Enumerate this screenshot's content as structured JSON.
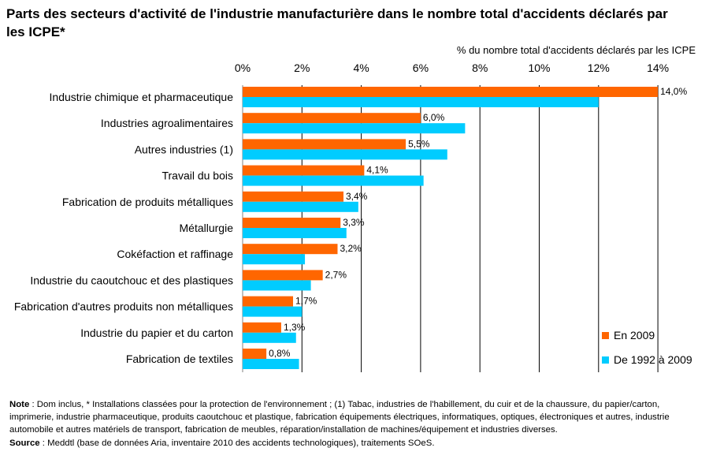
{
  "title": "Parts des secteurs d'activité de l'industrie manufacturière dans le nombre total d'accidents déclarés par les ICPE*",
  "colors": {
    "series_2009": "#FF6600",
    "series_1992_2009": "#00CCFF",
    "grid": "#000000",
    "axis": "#808080"
  },
  "chart_data": {
    "type": "bar",
    "orientation": "horizontal",
    "xlabel": "% du nombre total d'accidents déclarés par les ICPE",
    "xaxis_position": "top",
    "xlim": [
      0,
      14
    ],
    "xticks": [
      "0%",
      "2%",
      "4%",
      "6%",
      "8%",
      "10%",
      "12%",
      "14%"
    ],
    "grid": true,
    "legend_position": "bottom-right",
    "categories": [
      "Industrie chimique et pharmaceutique",
      "Industries agroalimentaires",
      "Autres industries (1)",
      "Travail du bois",
      "Fabrication de produits métalliques",
      "Métallurgie",
      "Cokéfaction et raffinage",
      "Industrie du caoutchouc et des plastiques",
      "Fabrication d'autres produits non métalliques",
      "Industrie du papier et du carton",
      "Fabrication de textiles"
    ],
    "series": [
      {
        "name": "En 2009",
        "color": "#FF6600",
        "values": [
          14.0,
          6.0,
          5.5,
          4.1,
          3.4,
          3.3,
          3.2,
          2.7,
          1.7,
          1.3,
          0.8
        ],
        "labels": [
          "14,0%",
          "6,0%",
          "5,5%",
          "4,1%",
          "3,4%",
          "3,3%",
          "3,2%",
          "2,7%",
          "1,7%",
          "1,3%",
          "0,8%"
        ]
      },
      {
        "name": "De 1992 à 2009",
        "color": "#00CCFF",
        "values": [
          12.0,
          7.5,
          6.9,
          6.1,
          3.9,
          3.5,
          2.1,
          2.3,
          2.0,
          1.8,
          1.9
        ]
      }
    ]
  },
  "note": {
    "note_label": "Note",
    "note_text": " : Dom inclus, * Installations classées pour la protection de l'environnement ; (1) Tabac, industries de l'habillement, du cuir et de la chaussure, du papier/carton, imprimerie, industrie pharmaceutique, produits caoutchouc et plastique, fabrication équipements électriques, informatiques, optiques, électroniques et autres, industrie automobile et autres matériels de transport, fabrication de meubles, réparation/installation de machines/équipement et industries diverses.",
    "source_label": "Source",
    "source_text": " : Meddtl (base de données Aria, inventaire 2010 des accidents technologiques), traitements SOeS."
  }
}
